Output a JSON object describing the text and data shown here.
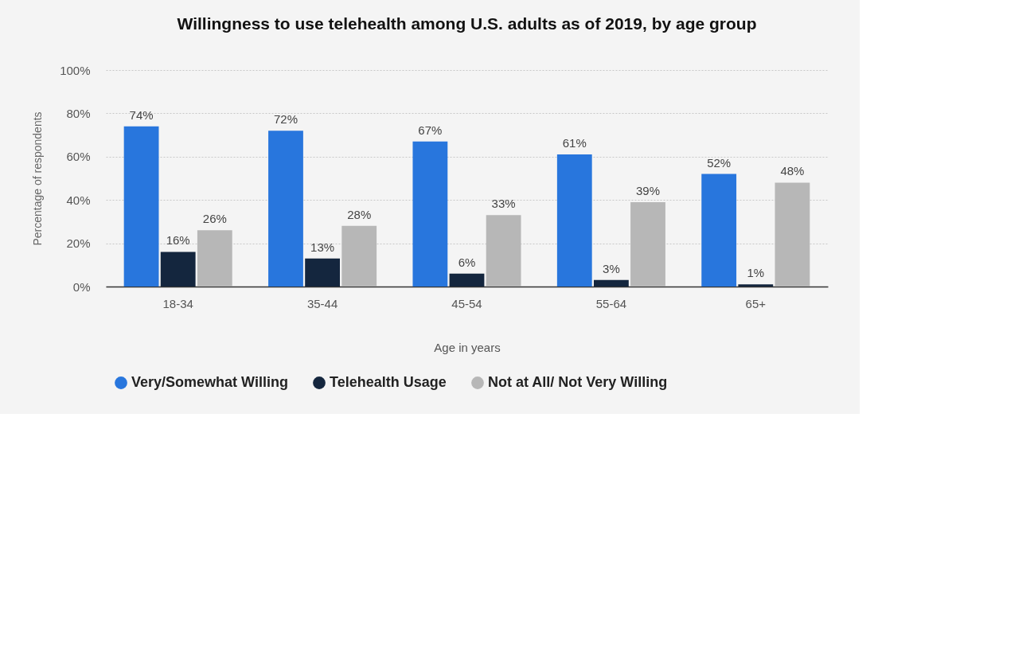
{
  "chart_data": {
    "type": "bar",
    "title": "Willingness to use telehealth among U.S. adults as of 2019, by age group",
    "xlabel": "Age in years",
    "ylabel": "Percentage of respondents",
    "categories": [
      "18-34",
      "35-44",
      "45-54",
      "55-64",
      "65+"
    ],
    "series": [
      {
        "name": "Very/Somewhat Willing",
        "color": "#2876dd",
        "values": [
          74,
          72,
          67,
          61,
          52
        ],
        "value_labels": [
          "74%",
          "72%",
          "67%",
          "61%",
          "52%"
        ]
      },
      {
        "name": "Telehealth Usage",
        "color": "#14263e",
        "values": [
          16,
          13,
          6,
          3,
          1
        ],
        "value_labels": [
          "16%",
          "13%",
          "6%",
          "3%",
          "1%"
        ]
      },
      {
        "name": "Not at All/ Not Very Willing",
        "color": "#b7b7b7",
        "values": [
          26,
          28,
          33,
          39,
          48
        ],
        "value_labels": [
          "26%",
          "28%",
          "33%",
          "39%",
          "48%"
        ]
      }
    ],
    "ylim": [
      0,
      100
    ],
    "yticks": [
      {
        "value": 0,
        "label": "0%"
      },
      {
        "value": 20,
        "label": "20%"
      },
      {
        "value": 40,
        "label": "40%"
      },
      {
        "value": 60,
        "label": "60%"
      },
      {
        "value": 80,
        "label": "80%"
      },
      {
        "value": 100,
        "label": "100%"
      }
    ],
    "grid": "y",
    "legend": "bottom"
  }
}
